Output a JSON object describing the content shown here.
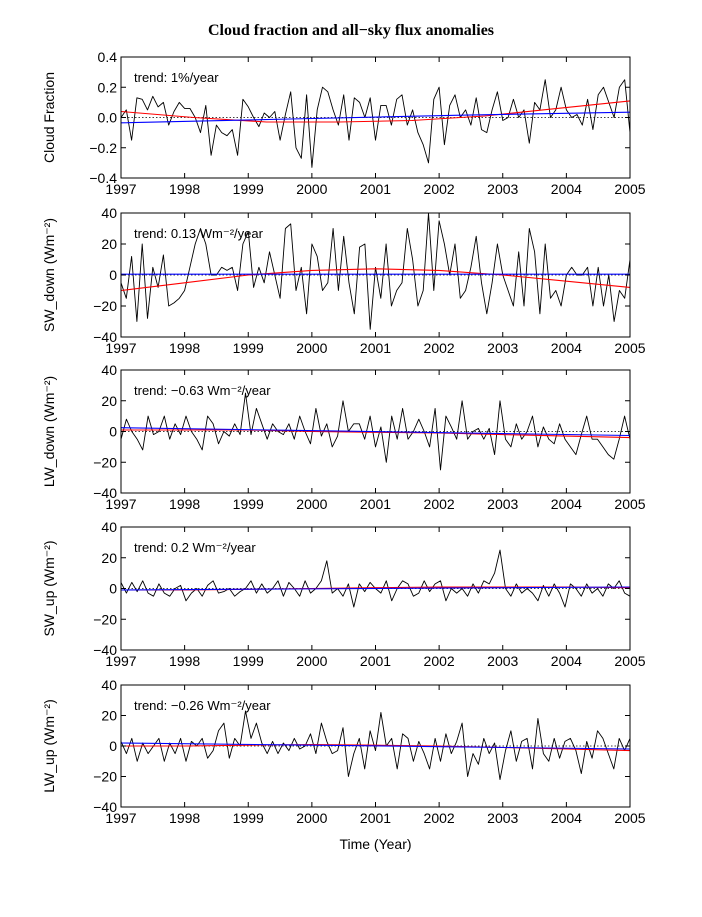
{
  "title": "Cloud fraction and all−sky flux anomalies",
  "colors": {
    "data": "#000000",
    "fit": "#ff0000",
    "linear": "#0000ff",
    "zero": "#000000"
  },
  "chart_data": [
    {
      "type": "line",
      "ylabel": "Cloud Fraction",
      "xlabel": "",
      "annotation": "trend: 1%/year",
      "xlim": [
        1997,
        2005
      ],
      "ylim": [
        -0.4,
        0.4
      ],
      "yticks": [
        "0.4",
        "0.2",
        "0.0",
        "−0.2",
        "−0.4"
      ],
      "ytick_values": [
        0.4,
        0.2,
        0.0,
        -0.2,
        -0.4
      ],
      "xticks": [
        "1997",
        "1998",
        "1999",
        "2000",
        "2001",
        "2002",
        "2003",
        "2004",
        "2005"
      ],
      "series": [
        {
          "role": "data",
          "values": [
            0.0,
            0.05,
            -0.15,
            0.13,
            0.12,
            0.05,
            0.14,
            0.07,
            0.1,
            -0.05,
            0.04,
            0.1,
            0.06,
            0.06,
            0.0,
            -0.1,
            0.08,
            -0.25,
            -0.05,
            -0.1,
            -0.12,
            -0.08,
            -0.25,
            0.12,
            0.07,
            0.0,
            -0.06,
            0.03,
            0.0,
            0.04,
            -0.15,
            0.02,
            0.17,
            -0.2,
            -0.27,
            0.15,
            -0.33,
            0.05,
            0.2,
            0.17,
            0.05,
            -0.05,
            0.15,
            -0.15,
            0.13,
            0.1,
            0.0,
            0.13,
            -0.15,
            0.08,
            0.08,
            -0.05,
            0.12,
            0.15,
            -0.05,
            0.05,
            -0.1,
            -0.18,
            -0.3,
            0.12,
            0.2,
            -0.18,
            0.08,
            0.15,
            0.0,
            0.05,
            -0.05,
            0.13,
            -0.08,
            -0.1,
            0.05,
            0.17,
            -0.02,
            0.0,
            0.12,
            0.0,
            0.05,
            -0.17,
            0.1,
            0.05,
            0.25,
            0.0,
            0.05,
            0.2,
            0.05,
            0.0,
            0.02,
            -0.05,
            0.12,
            -0.08,
            0.15,
            0.2,
            0.1,
            0.0,
            0.2,
            0.25,
            -0.1
          ]
        },
        {
          "role": "fit",
          "values": [
            0.04,
            0.0,
            -0.03,
            -0.03,
            -0.02,
            0.01,
            0.06,
            0.11
          ]
        },
        {
          "role": "linear",
          "values": [
            -0.035,
            -0.01,
            0.015,
            0.035
          ]
        }
      ]
    },
    {
      "type": "line",
      "ylabel": "SW_down (Wm⁻²)",
      "xlabel": "",
      "annotation": "trend: 0.13 Wm⁻²/year",
      "xlim": [
        1997,
        2005
      ],
      "ylim": [
        -40,
        40
      ],
      "yticks": [
        "40",
        "20",
        "0",
        "−20",
        "−40"
      ],
      "ytick_values": [
        40,
        20,
        0,
        -20,
        -40
      ],
      "xticks": [
        "1997",
        "1998",
        "1999",
        "2000",
        "2001",
        "2002",
        "2003",
        "2004",
        "2005"
      ],
      "series": [
        {
          "role": "data",
          "values": [
            -5,
            -15,
            12,
            -30,
            20,
            -28,
            5,
            -8,
            13,
            -20,
            -18,
            -15,
            -10,
            5,
            20,
            30,
            20,
            0,
            0,
            5,
            3,
            5,
            -10,
            20,
            28,
            -8,
            5,
            -5,
            15,
            0,
            -15,
            30,
            33,
            -10,
            5,
            -25,
            20,
            12,
            -10,
            -5,
            30,
            -10,
            25,
            -5,
            -25,
            18,
            20,
            -35,
            5,
            -15,
            20,
            -20,
            -10,
            -5,
            30,
            10,
            -20,
            -10,
            40,
            -10,
            35,
            20,
            0,
            20,
            -15,
            -10,
            5,
            25,
            -5,
            -25,
            -5,
            20,
            0,
            -10,
            -20,
            15,
            -20,
            30,
            15,
            -25,
            20,
            -15,
            -10,
            -20,
            0,
            5,
            0,
            0,
            5,
            -20,
            5,
            -20,
            0,
            -30,
            -10,
            -15,
            10
          ]
        },
        {
          "role": "fit",
          "values": [
            -10,
            -5,
            0,
            3,
            4,
            3,
            0,
            -4,
            -8
          ]
        },
        {
          "role": "linear",
          "values": [
            0.5,
            0.5,
            0.5,
            0.5
          ]
        }
      ]
    },
    {
      "type": "line",
      "ylabel": "LW_down (Wm⁻²)",
      "xlabel": "",
      "annotation": "trend: −0.63 Wm⁻²/year",
      "xlim": [
        1997,
        2005
      ],
      "ylim": [
        -40,
        40
      ],
      "yticks": [
        "40",
        "20",
        "0",
        "−20",
        "−40"
      ],
      "ytick_values": [
        40,
        20,
        0,
        -20,
        -40
      ],
      "xticks": [
        "1997",
        "1998",
        "1999",
        "2000",
        "2001",
        "2002",
        "2003",
        "2004",
        "2005"
      ],
      "series": [
        {
          "role": "data",
          "values": [
            -5,
            8,
            0,
            -5,
            -12,
            10,
            -2,
            0,
            10,
            -5,
            5,
            -2,
            10,
            0,
            -5,
            -12,
            10,
            5,
            -8,
            0,
            -3,
            5,
            -2,
            25,
            -2,
            15,
            5,
            -5,
            5,
            0,
            -2,
            5,
            -5,
            10,
            0,
            -8,
            15,
            -3,
            5,
            -10,
            -3,
            20,
            0,
            5,
            5,
            -5,
            10,
            -10,
            3,
            -20,
            10,
            -5,
            15,
            -5,
            0,
            8,
            0,
            -10,
            15,
            -25,
            10,
            3,
            -5,
            20,
            -5,
            0,
            2,
            -5,
            2,
            -15,
            20,
            -5,
            -10,
            5,
            -5,
            0,
            10,
            -10,
            3,
            -5,
            -8,
            5,
            -5,
            -10,
            -15,
            -2,
            10,
            -5,
            -5,
            -10,
            -15,
            -18,
            -5,
            10,
            -5
          ]
        },
        {
          "role": "fit",
          "values": [
            1,
            1,
            1,
            0,
            -0.5,
            -1,
            -2,
            -3,
            -4
          ]
        },
        {
          "role": "linear",
          "values": [
            2.5,
            0.8,
            -0.9,
            -2.6
          ]
        }
      ]
    },
    {
      "type": "line",
      "ylabel": "SW_up (Wm⁻²)",
      "xlabel": "",
      "annotation": "trend: 0.2 Wm⁻²/year",
      "xlim": [
        1997,
        2005
      ],
      "ylim": [
        -40,
        40
      ],
      "yticks": [
        "40",
        "20",
        "0",
        "−20",
        "−40"
      ],
      "ytick_values": [
        40,
        20,
        0,
        -20,
        -40
      ],
      "xticks": [
        "1997",
        "1998",
        "1999",
        "2000",
        "2001",
        "2002",
        "2003",
        "2004",
        "2005"
      ],
      "series": [
        {
          "role": "data",
          "values": [
            4,
            -3,
            4,
            -2,
            5,
            -3,
            -5,
            3,
            -3,
            -5,
            0,
            2,
            -8,
            -3,
            0,
            -5,
            2,
            5,
            -3,
            -2,
            0,
            -5,
            -2,
            0,
            5,
            -3,
            3,
            -3,
            0,
            5,
            -5,
            4,
            0,
            -5,
            5,
            -3,
            0,
            5,
            18,
            -3,
            0,
            -5,
            3,
            -12,
            3,
            -2,
            4,
            0,
            -3,
            5,
            -8,
            0,
            5,
            3,
            -5,
            -3,
            5,
            -2,
            3,
            5,
            -8,
            0,
            -3,
            0,
            -5,
            3,
            -3,
            5,
            3,
            10,
            25,
            0,
            -5,
            3,
            -3,
            0,
            -3,
            -8,
            2,
            -5,
            3,
            -3,
            -12,
            3,
            0,
            -5,
            3,
            -3,
            0,
            -5,
            3,
            0,
            5,
            -3,
            -5
          ]
        },
        {
          "role": "fit",
          "values": [
            -1,
            -1,
            -0.5,
            0,
            0.5,
            1,
            1,
            1,
            0.5
          ]
        },
        {
          "role": "linear",
          "values": [
            -1,
            -0.3,
            0.4,
            1
          ]
        }
      ]
    },
    {
      "type": "line",
      "ylabel": "LW_up (Wm⁻²)",
      "xlabel": "Time (Year)",
      "annotation": "trend: −0.26 Wm⁻²/year",
      "xlim": [
        1997,
        2005
      ],
      "ylim": [
        -40,
        40
      ],
      "yticks": [
        "40",
        "20",
        "0",
        "−20",
        "−40"
      ],
      "ytick_values": [
        40,
        20,
        0,
        -20,
        -40
      ],
      "xticks": [
        "1997",
        "1998",
        "1999",
        "2000",
        "2001",
        "2002",
        "2003",
        "2004",
        "2005"
      ],
      "series": [
        {
          "role": "data",
          "values": [
            3,
            -5,
            5,
            -10,
            2,
            -5,
            0,
            5,
            -10,
            2,
            -5,
            5,
            -10,
            3,
            0,
            5,
            -8,
            -3,
            10,
            15,
            -8,
            5,
            0,
            23,
            5,
            15,
            2,
            -5,
            3,
            -5,
            2,
            -3,
            5,
            -2,
            0,
            8,
            -5,
            15,
            3,
            -5,
            -3,
            12,
            -20,
            -5,
            5,
            -15,
            10,
            -3,
            22,
            0,
            5,
            -15,
            8,
            5,
            -10,
            3,
            -5,
            -15,
            5,
            -10,
            8,
            -5,
            3,
            15,
            -20,
            -5,
            -12,
            5,
            -5,
            2,
            -22,
            -3,
            10,
            -10,
            3,
            5,
            -15,
            18,
            -5,
            -10,
            5,
            -8,
            3,
            5,
            -3,
            -18,
            3,
            -8,
            10,
            5,
            -5,
            -15,
            5,
            -3,
            5
          ]
        },
        {
          "role": "fit",
          "values": [
            0,
            0,
            0.5,
            1,
            0.5,
            0,
            -1,
            -2,
            -3
          ]
        },
        {
          "role": "linear",
          "values": [
            2,
            0.7,
            -0.6,
            -2
          ]
        }
      ]
    }
  ]
}
